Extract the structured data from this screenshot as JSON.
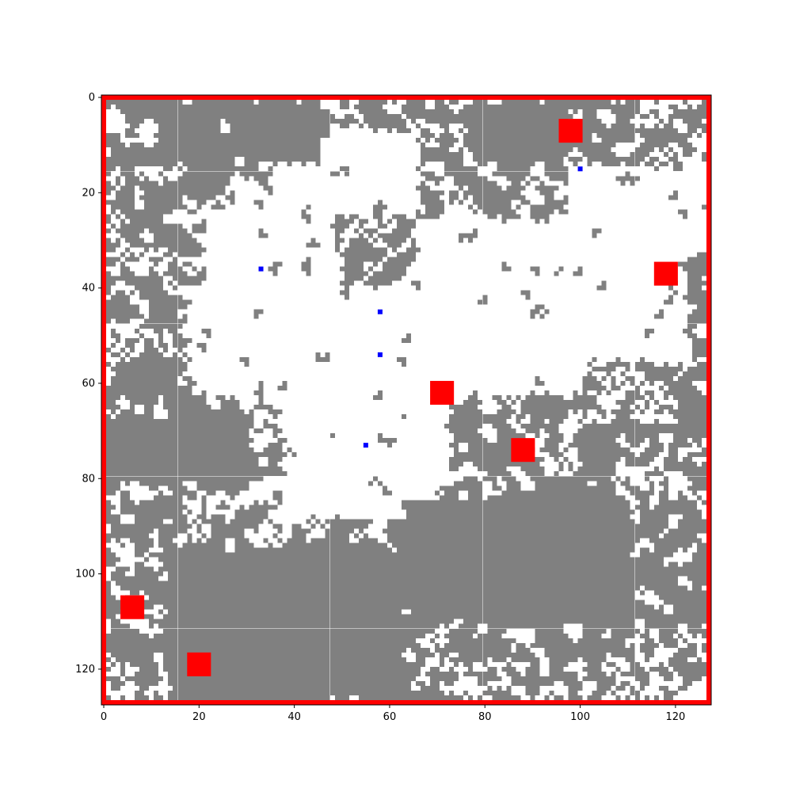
{
  "chart_data": {
    "type": "heatmap",
    "grid_size": 128,
    "xlim": [
      -0.5,
      127.5
    ],
    "ylim": [
      127.5,
      -0.5
    ],
    "x_ticks": [
      0,
      20,
      40,
      60,
      80,
      100,
      120
    ],
    "y_ticks": [
      0,
      20,
      40,
      60,
      80,
      100,
      120
    ],
    "grid": false,
    "colors": {
      "open": "#ffffff",
      "wall": "#808080",
      "boundary": "#ff0000",
      "goal": "#ff0000",
      "agent": "#0000ff"
    },
    "goals": [
      {
        "x": 98,
        "y": 7
      },
      {
        "x": 118,
        "y": 37
      },
      {
        "x": 71,
        "y": 62
      },
      {
        "x": 88,
        "y": 74
      },
      {
        "x": 6,
        "y": 107
      },
      {
        "x": 20,
        "y": 119
      }
    ],
    "agents": [
      {
        "x": 100,
        "y": 15
      },
      {
        "x": 33,
        "y": 36
      },
      {
        "x": 58,
        "y": 45
      },
      {
        "x": 58,
        "y": 54
      },
      {
        "x": 55,
        "y": 73
      }
    ],
    "open_regions": [
      {
        "name": "upper-central-clearing",
        "x0": 22,
        "x1": 48,
        "y0": 22,
        "y1": 40
      },
      {
        "name": "mid-right-clearing",
        "x0": 66,
        "x1": 122,
        "y0": 26,
        "y1": 55
      },
      {
        "name": "central-corridor",
        "x0": 18,
        "x1": 100,
        "y0": 40,
        "y1": 62
      },
      {
        "name": "lower-central-clearing",
        "x0": 38,
        "x1": 72,
        "y0": 62,
        "y1": 88
      },
      {
        "name": "top-center-clearing",
        "x0": 36,
        "x1": 66,
        "y0": 8,
        "y1": 24
      },
      {
        "name": "upper-right-clearing",
        "x0": 98,
        "x1": 126,
        "y0": 15,
        "y1": 30
      }
    ],
    "wall_regions": [
      {
        "name": "top-left-block",
        "x0": 12,
        "x1": 24,
        "y0": 2,
        "y1": 13
      },
      {
        "name": "top-mid-block",
        "x0": 29,
        "x1": 45,
        "y0": 2,
        "y1": 13
      },
      {
        "name": "top-right-block",
        "x0": 78,
        "x1": 96,
        "y0": 2,
        "y1": 13
      },
      {
        "name": "left-mid-block",
        "x0": 1,
        "x1": 28,
        "y0": 68,
        "y1": 80
      },
      {
        "name": "bottom-mid-block",
        "x0": 14,
        "x1": 62,
        "y0": 96,
        "y1": 126
      },
      {
        "name": "bottom-right-block",
        "x0": 64,
        "x1": 110,
        "y0": 85,
        "y1": 110
      }
    ]
  }
}
